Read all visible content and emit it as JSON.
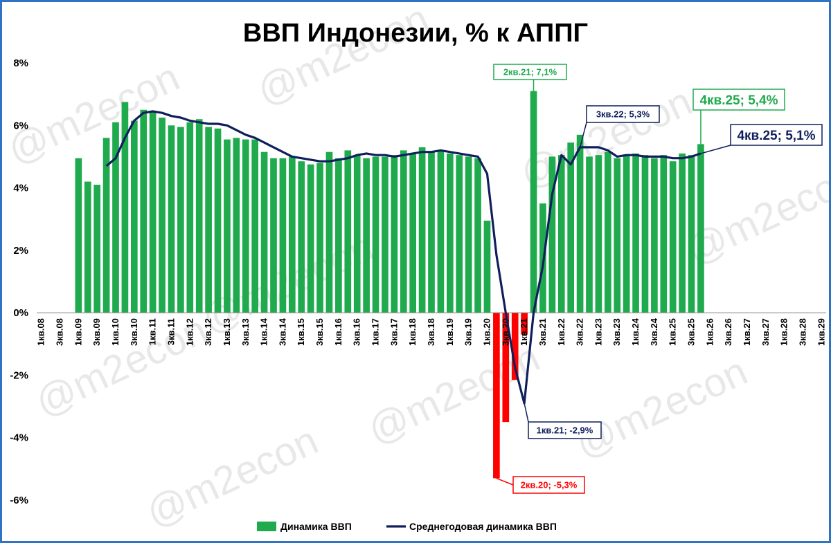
{
  "chart_data": {
    "type": "bar",
    "title": "ВВП Индонезии, % к АППГ",
    "watermark": "@m2econ",
    "ylim": [
      -6,
      8
    ],
    "ytick_values": [
      8,
      6,
      4,
      2,
      0,
      -2,
      -4,
      -6
    ],
    "ytick_labels": [
      "8%",
      "6%",
      "4%",
      "2%",
      "0%",
      "-2%",
      "-4%",
      "-6%"
    ],
    "grid": false,
    "legend_position": "bottom",
    "colors": {
      "positive_bar": "#1faa4d",
      "negative_bar": "#ff0000",
      "line": "#0f1f5c",
      "annotation_green": "#1faa4d",
      "annotation_navy": "#0f1f5c",
      "annotation_red": "#ff0000",
      "frame": "#2e73c4"
    },
    "categories": [
      "1кв.08",
      "2кв.08",
      "3кв.08",
      "4кв.08",
      "1кв.09",
      "2кв.09",
      "3кв.09",
      "4кв.09",
      "1кв.10",
      "2кв.10",
      "3кв.10",
      "4кв.10",
      "1кв.11",
      "2кв.11",
      "3кв.11",
      "4кв.11",
      "1кв.12",
      "2кв.12",
      "3кв.12",
      "4кв.12",
      "1кв.13",
      "2кв.13",
      "3кв.13",
      "4кв.13",
      "1кв.14",
      "2кв.14",
      "3кв.14",
      "4кв.14",
      "1кв.15",
      "2кв.15",
      "3кв.15",
      "4кв.15",
      "1кв.16",
      "2кв.16",
      "3кв.16",
      "4кв.16",
      "1кв.17",
      "2кв.17",
      "3кв.17",
      "4кв.17",
      "1кв.18",
      "2кв.18",
      "3кв.18",
      "4кв.18",
      "1кв.19",
      "2кв.19",
      "3кв.19",
      "4кв.19",
      "1кв.20",
      "2кв.20",
      "3кв.20",
      "4кв.20",
      "1кв.21",
      "2кв.21",
      "3кв.21",
      "4кв.21",
      "1кв.22",
      "2кв.22",
      "3кв.22",
      "4кв.22",
      "1кв.23",
      "2кв.23",
      "3кв.23",
      "4кв.23",
      "1кв.24",
      "2кв.24",
      "3кв.24",
      "4кв.24",
      "1кв.25",
      "2кв.25",
      "3кв.25",
      "4кв.25",
      "1кв.26",
      "2кв.26",
      "3кв.26",
      "4кв.26",
      "1кв.27",
      "2кв.27",
      "3кв.27",
      "4кв.27",
      "1кв.28",
      "2кв.28",
      "3кв.28",
      "4кв.28",
      "1кв.29"
    ],
    "tick_labels": [
      "1кв.08",
      "3кв.08",
      "1кв.09",
      "3кв.09",
      "1кв.10",
      "3кв.10",
      "1кв.11",
      "3кв.11",
      "1кв.12",
      "3кв.12",
      "1кв.13",
      "3кв.13",
      "1кв.14",
      "3кв.14",
      "1кв.15",
      "3кв.15",
      "1кв.16",
      "3кв.16",
      "1кв.17",
      "3кв.17",
      "1кв.18",
      "3кв.18",
      "1кв.19",
      "3кв.19",
      "1кв.20",
      "3кв.20",
      "1кв.21",
      "3кв.21",
      "1кв.22",
      "3кв.22",
      "1кв.23",
      "3кв.23",
      "1кв.24",
      "3кв.24",
      "1кв.25",
      "3кв.25",
      "1кв.26",
      "3кв.26",
      "1кв.27",
      "3кв.27",
      "1кв.28",
      "3кв.28",
      "1кв.29"
    ],
    "series": [
      {
        "name": "Динамика ВВП",
        "type": "bar",
        "values": [
          null,
          null,
          null,
          null,
          4.95,
          4.2,
          4.1,
          5.6,
          6.1,
          6.75,
          6.15,
          6.5,
          6.45,
          6.25,
          6.0,
          5.95,
          6.1,
          6.2,
          5.95,
          5.9,
          5.55,
          5.6,
          5.55,
          5.55,
          5.15,
          4.95,
          4.95,
          5.0,
          4.85,
          4.75,
          4.8,
          5.15,
          4.95,
          5.2,
          5.05,
          4.95,
          5.0,
          5.0,
          5.05,
          5.2,
          5.1,
          5.3,
          5.15,
          5.2,
          5.1,
          5.05,
          5.0,
          4.95,
          2.95,
          -5.3,
          -3.5,
          -2.15,
          -0.7,
          7.1,
          3.5,
          5.0,
          5.05,
          5.45,
          5.7,
          5.0,
          5.05,
          5.15,
          4.95,
          5.05,
          5.1,
          5.05,
          4.95,
          5.05,
          4.85,
          5.1,
          5.05,
          5.4,
          null,
          null,
          null,
          null,
          null,
          null,
          null,
          null,
          null,
          null,
          null,
          null,
          null
        ]
      },
      {
        "name": "Среднегодовая динамика ВВП",
        "type": "line",
        "values": [
          null,
          null,
          null,
          null,
          null,
          null,
          null,
          4.7,
          4.95,
          5.6,
          6.15,
          6.4,
          6.45,
          6.4,
          6.3,
          6.25,
          6.15,
          6.1,
          6.05,
          6.05,
          6.0,
          5.85,
          5.7,
          5.6,
          5.45,
          5.3,
          5.15,
          5.0,
          4.95,
          4.9,
          4.85,
          4.85,
          4.9,
          4.95,
          5.05,
          5.1,
          5.05,
          5.05,
          5.0,
          5.05,
          5.1,
          5.15,
          5.15,
          5.2,
          5.15,
          5.1,
          5.05,
          5.0,
          4.45,
          1.85,
          0.0,
          -1.75,
          -2.9,
          0.0,
          1.5,
          3.8,
          5.05,
          4.75,
          5.3,
          5.3,
          5.3,
          5.2,
          5.0,
          5.05,
          5.05,
          5.0,
          5.0,
          5.0,
          4.95,
          4.95,
          5.0,
          5.1,
          null,
          null,
          null,
          null,
          null,
          null,
          null,
          null,
          null,
          null,
          null,
          null,
          null
        ]
      }
    ],
    "annotations": [
      {
        "text": "2кв.21; 7,1%",
        "color": "#1faa4d",
        "size": "small"
      },
      {
        "text": "3кв.22; 5,3%",
        "color": "#0f1f5c",
        "size": "small"
      },
      {
        "text": "4кв.25; 5,4%",
        "color": "#1faa4d",
        "size": "large"
      },
      {
        "text": "4кв.25; 5,1%",
        "color": "#0f1f5c",
        "size": "large"
      },
      {
        "text": "1кв.21; -2,9%",
        "color": "#0f1f5c",
        "size": "small"
      },
      {
        "text": "2кв.20; -5,3%",
        "color": "#ff0000",
        "size": "small"
      }
    ]
  }
}
